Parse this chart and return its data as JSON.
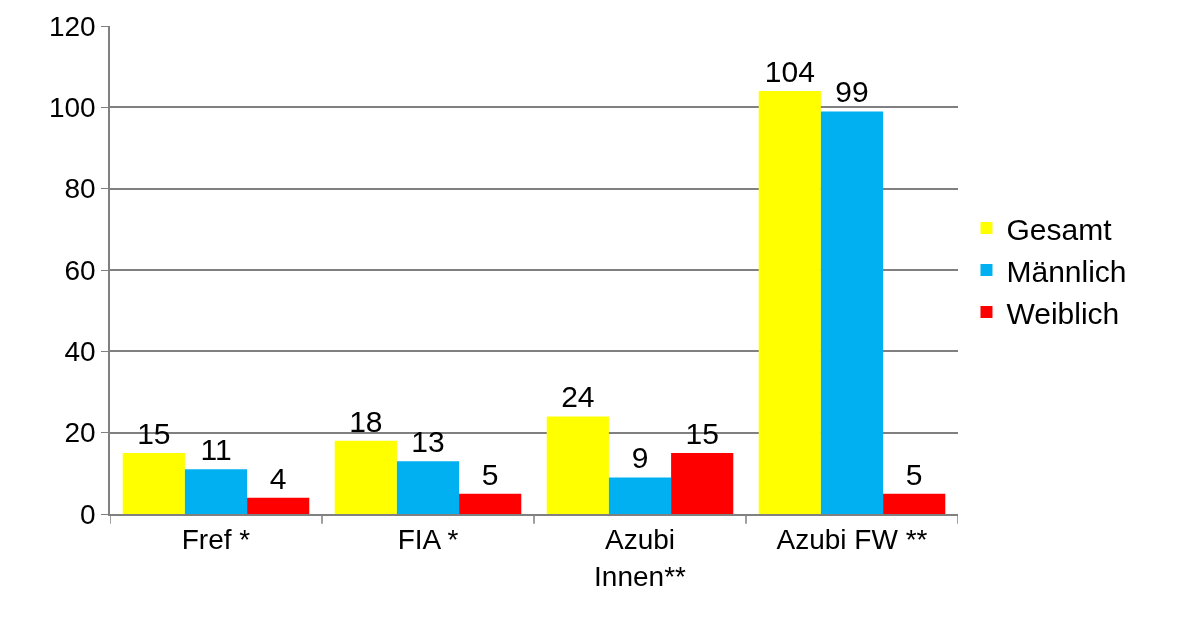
{
  "chart_data": {
    "type": "bar",
    "categories": [
      "Fref *",
      "FIA *",
      "Azubi\nInnen**",
      "Azubi FW **"
    ],
    "series": [
      {
        "name": "Gesamt",
        "color": "#ffff00",
        "values": [
          15,
          18,
          24,
          104
        ]
      },
      {
        "name": "Männlich",
        "color": "#00b0f0",
        "values": [
          11,
          13,
          9,
          99
        ]
      },
      {
        "name": "Weiblich",
        "color": "#ff0000",
        "values": [
          4,
          5,
          15,
          5
        ]
      }
    ],
    "ylim": [
      0,
      120
    ],
    "yticks": [
      0,
      20,
      40,
      60,
      80,
      100,
      120
    ],
    "grid": "y",
    "legend": "right",
    "data_labels": true
  }
}
